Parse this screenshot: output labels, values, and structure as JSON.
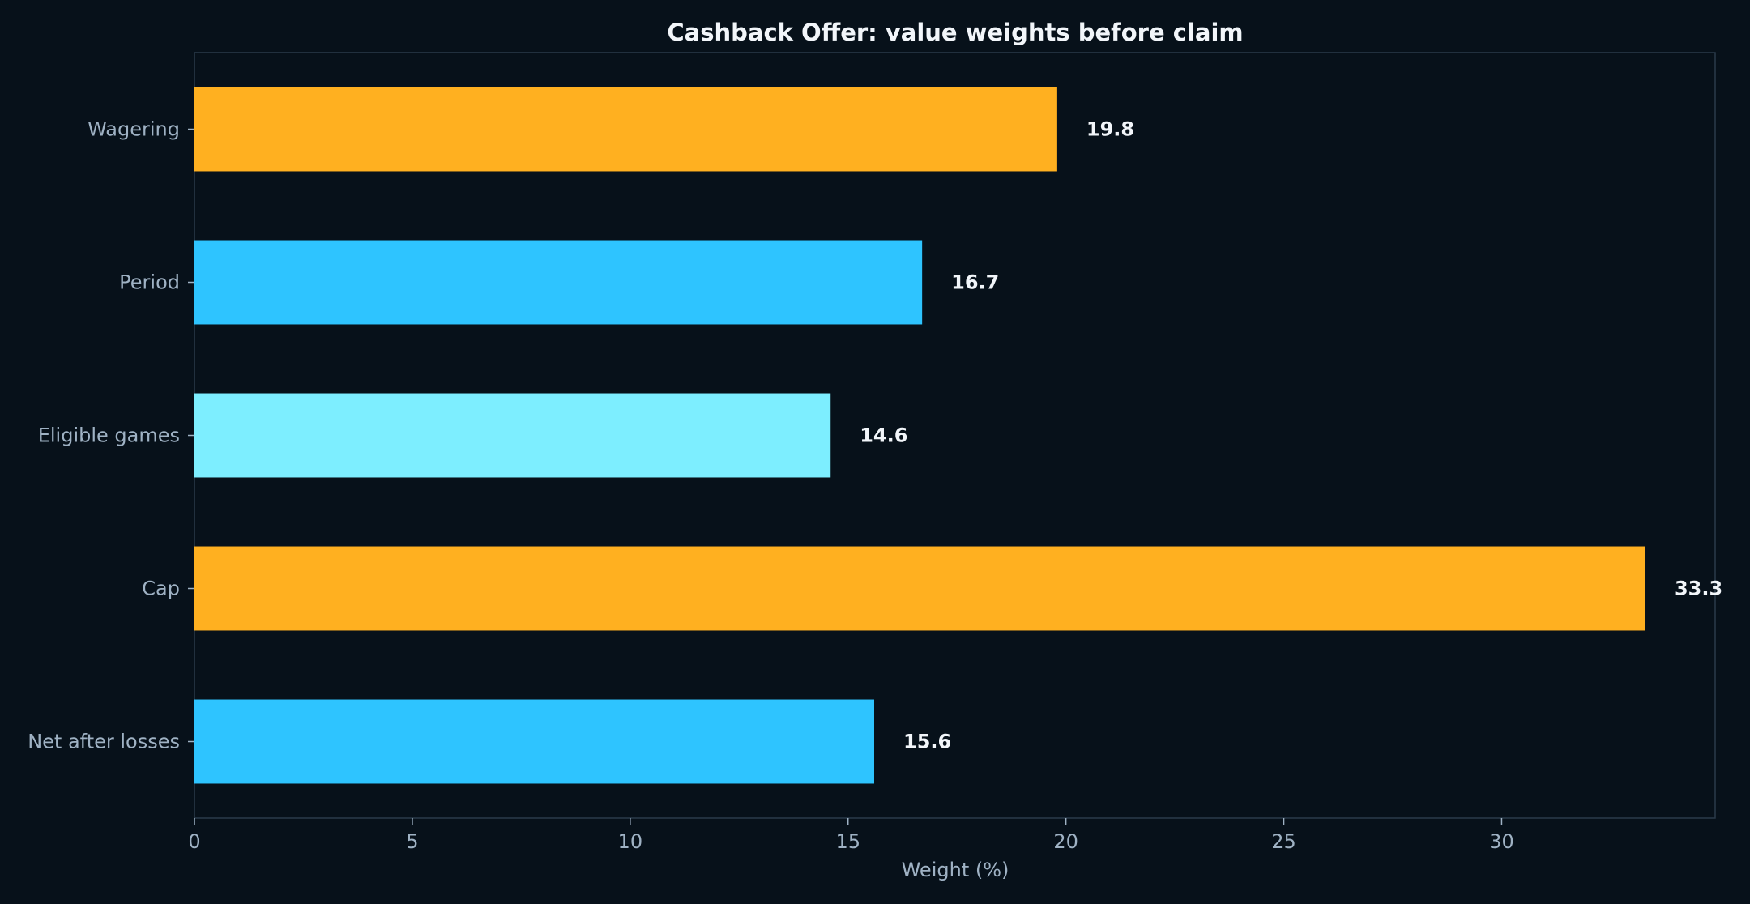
{
  "chart_data": {
    "type": "bar",
    "orientation": "horizontal",
    "title": "Cashback Offer: value weights before claim",
    "xlabel": "Weight (%)",
    "ylabel": "",
    "categories": [
      "Wagering",
      "Period",
      "Eligible games",
      "Cap",
      "Net after losses"
    ],
    "values": [
      19.8,
      16.7,
      14.6,
      33.3,
      15.6
    ],
    "value_labels": [
      "19.8",
      "16.7",
      "14.6",
      "33.3",
      "15.6"
    ],
    "bar_colors": [
      "#ffb020",
      "#2ec4ff",
      "#7deeff",
      "#ffb020",
      "#2ec4ff"
    ],
    "xlim": [
      0,
      34.9
    ],
    "xticks": [
      0,
      5,
      10,
      15,
      20,
      25,
      30
    ],
    "xtick_labels": [
      "0",
      "5",
      "10",
      "15",
      "20",
      "25",
      "30"
    ],
    "grid": false,
    "legend": "none"
  },
  "colors": {
    "background": "#07111a",
    "axis": "#2a3a4a",
    "text_muted": "#9fb2c4",
    "text_bright": "#f2f6fa"
  }
}
